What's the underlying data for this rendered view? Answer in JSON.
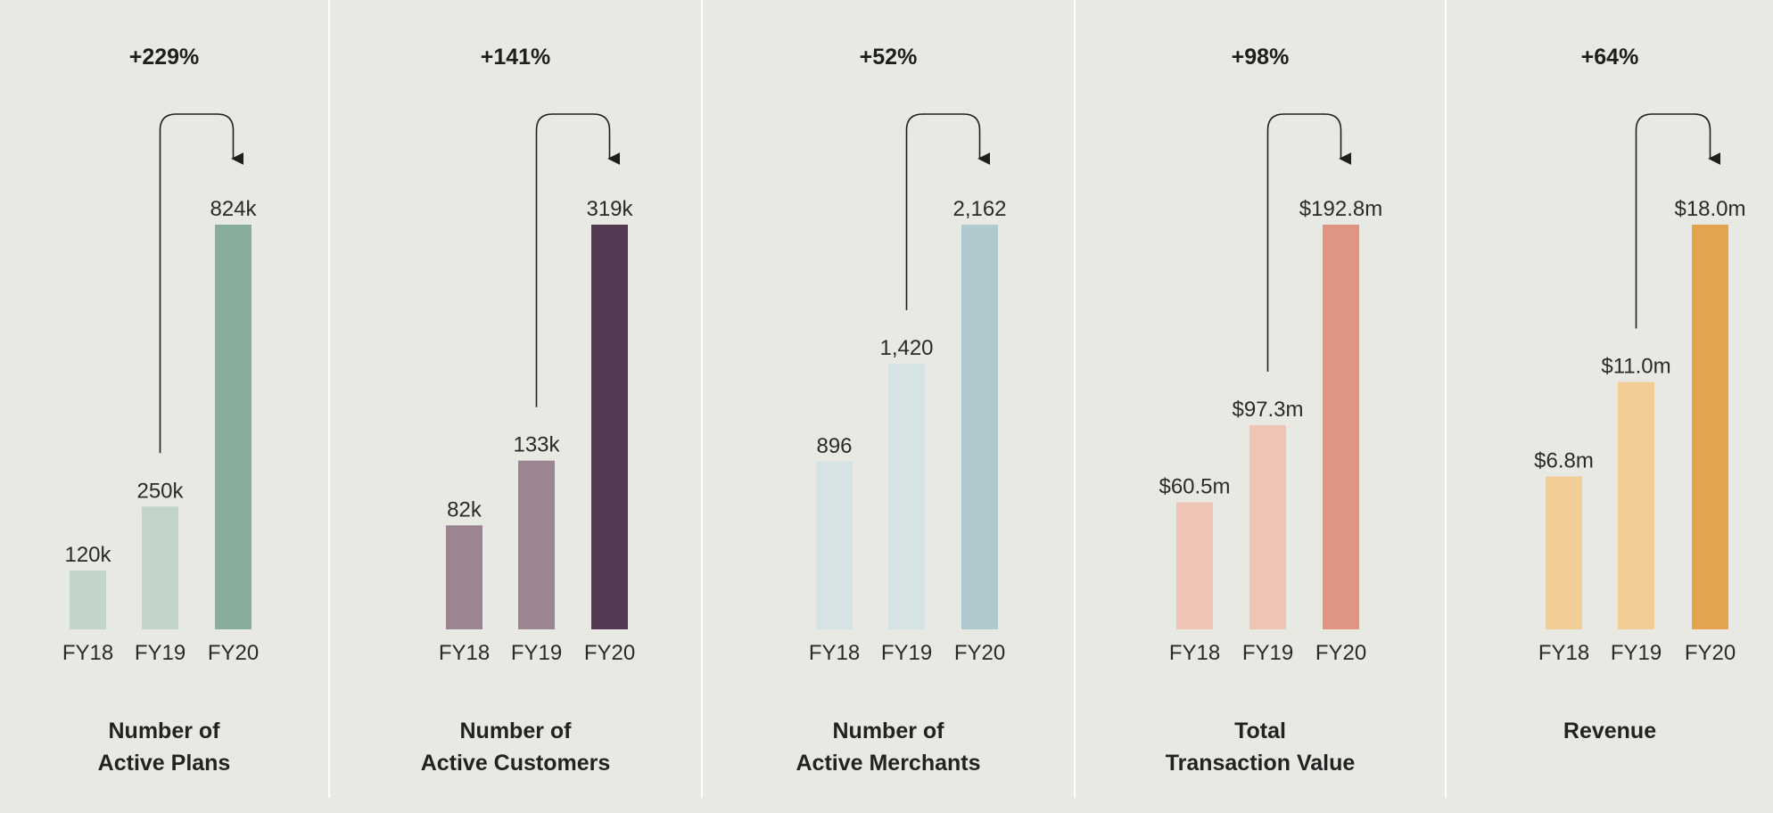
{
  "chart_data": [
    {
      "type": "bar",
      "title": "Number of Active Plans",
      "title_lines": [
        "Number of",
        "Active Plans"
      ],
      "growth": "+229%",
      "categories": [
        "FY18",
        "FY19",
        "FY20"
      ],
      "values": [
        120,
        250,
        824
      ],
      "value_labels": [
        "120k",
        "250k",
        "824k"
      ],
      "units": "thousands",
      "colors": [
        "#c2d5c9",
        "#c2d5c9",
        "#87ae9c"
      ]
    },
    {
      "type": "bar",
      "title": "Number of Active Customers",
      "title_lines": [
        "Number of",
        "Active Customers"
      ],
      "growth": "+141%",
      "categories": [
        "FY18",
        "FY19",
        "FY20"
      ],
      "values": [
        82,
        133,
        319
      ],
      "value_labels": [
        "82k",
        "133k",
        "319k"
      ],
      "units": "thousands",
      "colors": [
        "#9a8590",
        "#9a8590",
        "#533a52"
      ]
    },
    {
      "type": "bar",
      "title": "Number of Active Merchants",
      "title_lines": [
        "Number of",
        "Active Merchants"
      ],
      "growth": "+52%",
      "categories": [
        "FY18",
        "FY19",
        "FY20"
      ],
      "values": [
        896,
        1420,
        2162
      ],
      "value_labels": [
        "896",
        "1,420",
        "2,162"
      ],
      "units": "count",
      "colors": [
        "#d5e3e5",
        "#d5e3e5",
        "#b0c9ce"
      ]
    },
    {
      "type": "bar",
      "title": "Total Transaction Value",
      "title_lines": [
        "Total",
        "Transaction Value"
      ],
      "growth": "+98%",
      "categories": [
        "FY18",
        "FY19",
        "FY20"
      ],
      "values": [
        60.5,
        97.3,
        192.8
      ],
      "value_labels": [
        "$60.5m",
        "$97.3m",
        "$192.8m"
      ],
      "units": "$m",
      "colors": [
        "#efc4b4",
        "#efc4b4",
        "#e09484"
      ]
    },
    {
      "type": "bar",
      "title": "Revenue",
      "title_lines": [
        "Revenue"
      ],
      "growth": "+64%",
      "categories": [
        "FY18",
        "FY19",
        "FY20"
      ],
      "values": [
        6.8,
        11.0,
        18.0
      ],
      "value_labels": [
        "$6.8m",
        "$11.0m",
        "$18.0m"
      ],
      "units": "$m",
      "colors": [
        "#f3cd96",
        "#f3cd96",
        "#e4a44e"
      ]
    }
  ]
}
